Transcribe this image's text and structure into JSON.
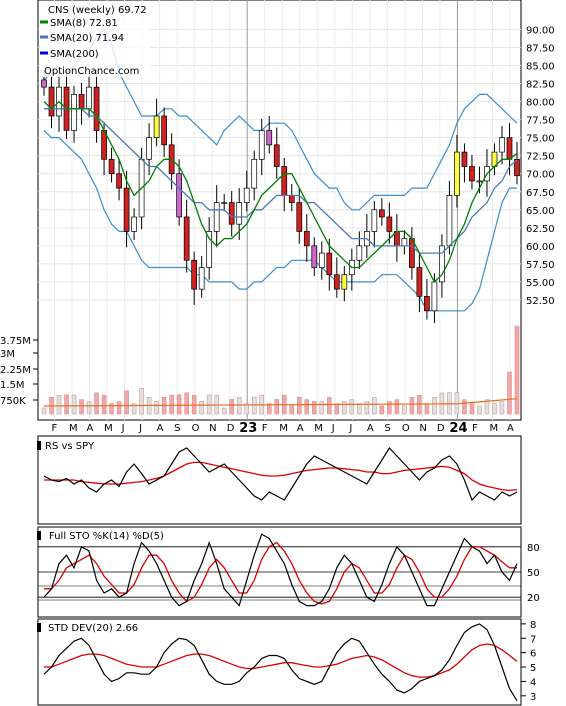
{
  "chart_data": [
    {
      "type": "candlestick",
      "panel": "price",
      "title": "CNS (weekly) 69.72",
      "watermark": "OptionChance.com",
      "legend": [
        {
          "label": "SMA(8) 72.81",
          "color": "#008000"
        },
        {
          "label": "SMA(20) 71.94",
          "color": "#4a7ab5"
        },
        {
          "label": "SMA(200)",
          "color": "#0000cc"
        }
      ],
      "ylim": [
        50,
        92
      ],
      "yticks": [
        "90.00",
        "87.50",
        "85.00",
        "82.50",
        "80.00",
        "77.50",
        "75.00",
        "72.50",
        "70.00",
        "67.50",
        "65.00",
        "62.50",
        "60.00",
        "57.50",
        "55.00",
        "52.50"
      ],
      "x_labels": [
        "F",
        "M",
        "A",
        "M",
        "J",
        "J",
        "A",
        "S",
        "O",
        "N",
        "D",
        "23",
        "F",
        "M",
        "A",
        "M",
        "J",
        "J",
        "A",
        "S",
        "O",
        "N",
        "D",
        "24",
        "F",
        "M",
        "A"
      ],
      "close": [
        82,
        78,
        82,
        76,
        81,
        79,
        82,
        76,
        72,
        70,
        68,
        62,
        64,
        72,
        75,
        78,
        74,
        70,
        64,
        58,
        54,
        57,
        62,
        66,
        66,
        63,
        66,
        68,
        72,
        76,
        74,
        71,
        67,
        66,
        62,
        60,
        57,
        59,
        56,
        54,
        56,
        58,
        60,
        62,
        65,
        64,
        62,
        60,
        61,
        57,
        53,
        51,
        55,
        60,
        67,
        73,
        71,
        69,
        69,
        71,
        73,
        75,
        72,
        69.72
      ],
      "sma8": [
        80,
        79,
        80,
        79,
        79,
        79,
        79,
        78,
        76,
        74,
        72,
        69,
        67,
        68,
        69,
        71,
        72,
        72,
        71,
        69,
        66,
        63,
        61,
        60,
        61,
        61,
        62,
        63,
        65,
        67,
        68,
        69,
        70,
        70,
        68,
        66,
        64,
        62,
        60,
        59,
        58,
        57,
        57,
        58,
        59,
        60,
        61,
        62,
        62,
        61,
        59,
        57,
        55,
        56,
        58,
        61,
        63,
        66,
        68,
        70,
        71,
        72,
        72,
        72.81
      ],
      "sma20": [
        79,
        79,
        79,
        79,
        79,
        79,
        78,
        78,
        77,
        76,
        75,
        74,
        73,
        72,
        71,
        71,
        70,
        69,
        68,
        67,
        66,
        66,
        65,
        65,
        65,
        64,
        64,
        64,
        65,
        65,
        66,
        67,
        67,
        67,
        67,
        66,
        66,
        65,
        64,
        63,
        62,
        61,
        61,
        61,
        60,
        60,
        60,
        60,
        60,
        60,
        59,
        59,
        59,
        59,
        60,
        61,
        62,
        64,
        65,
        66,
        68,
        69,
        71,
        71.94
      ],
      "bb_upper": [
        83,
        84,
        84,
        84,
        85,
        86,
        87,
        89,
        90,
        88,
        84,
        82,
        80,
        78,
        78,
        78,
        79,
        79,
        78,
        78,
        77,
        76,
        75,
        74,
        76,
        77,
        78,
        77,
        76,
        76,
        77,
        77,
        77,
        76,
        74,
        72,
        70,
        69,
        68,
        68,
        66,
        65,
        65,
        66,
        67,
        67,
        67,
        67,
        67,
        68,
        68,
        68,
        70,
        72,
        74,
        77,
        79,
        80,
        81,
        81,
        80,
        79,
        78,
        77
      ],
      "bb_lower": [
        76,
        75,
        75,
        74,
        73,
        72,
        70,
        68,
        65,
        63,
        62,
        62,
        60,
        58,
        57,
        57,
        57,
        57,
        57,
        57,
        56,
        56,
        55,
        55,
        55,
        55,
        54,
        54,
        55,
        55,
        56,
        57,
        57,
        58,
        58,
        58,
        58,
        57,
        56,
        55,
        55,
        55,
        55,
        55,
        55,
        56,
        56,
        56,
        55,
        54,
        53,
        51,
        51,
        51,
        51,
        51,
        51,
        52,
        54,
        58,
        62,
        66,
        68,
        68
      ],
      "volume_ylabels": [
        "3.75M",
        "3M",
        "2.25M",
        "1.5M",
        "750K"
      ]
    },
    {
      "type": "line",
      "panel": "rs",
      "title": "RS vs SPY",
      "series": [
        {
          "values": [
            0.55,
            0.5,
            0.48,
            0.52,
            0.45,
            0.5,
            0.4,
            0.35,
            0.45,
            0.5,
            0.42,
            0.6,
            0.7,
            0.58,
            0.45,
            0.5,
            0.55,
            0.7,
            0.85,
            0.9,
            0.8,
            0.7,
            0.6,
            0.65,
            0.7,
            0.6,
            0.5,
            0.4,
            0.3,
            0.25,
            0.35,
            0.3,
            0.25,
            0.4,
            0.55,
            0.7,
            0.8,
            0.75,
            0.7,
            0.65,
            0.6,
            0.55,
            0.5,
            0.45,
            0.6,
            0.75,
            0.9,
            0.8,
            0.7,
            0.6,
            0.5,
            0.6,
            0.65,
            0.75,
            0.8,
            0.7,
            0.5,
            0.25,
            0.35,
            0.3,
            0.25,
            0.35,
            0.3,
            0.35
          ]
        },
        {
          "values": [
            0.5,
            0.5,
            0.5,
            0.5,
            0.5,
            0.48,
            0.47,
            0.46,
            0.45,
            0.45,
            0.45,
            0.46,
            0.47,
            0.48,
            0.5,
            0.52,
            0.55,
            0.6,
            0.65,
            0.7,
            0.72,
            0.72,
            0.7,
            0.68,
            0.66,
            0.64,
            0.62,
            0.6,
            0.58,
            0.56,
            0.55,
            0.55,
            0.56,
            0.58,
            0.6,
            0.62,
            0.63,
            0.64,
            0.65,
            0.65,
            0.64,
            0.63,
            0.62,
            0.6,
            0.6,
            0.58,
            0.58,
            0.6,
            0.62,
            0.63,
            0.64,
            0.65,
            0.66,
            0.67,
            0.66,
            0.62,
            0.58,
            0.5,
            0.45,
            0.42,
            0.4,
            0.38,
            0.37,
            0.38
          ]
        }
      ]
    },
    {
      "type": "line",
      "panel": "stochastic",
      "title": "Full STO %K(14) %D(5)",
      "yticks": [
        "80",
        "50",
        "20"
      ],
      "ylim": [
        0,
        100
      ],
      "series": [
        {
          "values": [
            20,
            30,
            60,
            70,
            55,
            80,
            75,
            40,
            25,
            30,
            20,
            25,
            60,
            85,
            75,
            60,
            40,
            20,
            10,
            15,
            40,
            60,
            85,
            60,
            30,
            20,
            10,
            40,
            70,
            95,
            90,
            75,
            60,
            35,
            15,
            10,
            10,
            15,
            30,
            55,
            70,
            60,
            40,
            20,
            15,
            35,
            60,
            80,
            70,
            50,
            30,
            10,
            10,
            30,
            50,
            70,
            90,
            80,
            75,
            60,
            70,
            50,
            40,
            60
          ]
        },
        {
          "values": [
            30,
            30,
            40,
            55,
            60,
            65,
            70,
            60,
            45,
            35,
            25,
            25,
            35,
            55,
            70,
            70,
            60,
            40,
            25,
            15,
            20,
            35,
            55,
            65,
            55,
            40,
            25,
            25,
            40,
            65,
            80,
            85,
            75,
            60,
            40,
            25,
            15,
            12,
            15,
            30,
            50,
            60,
            55,
            40,
            25,
            25,
            35,
            55,
            70,
            65,
            50,
            30,
            20,
            20,
            30,
            45,
            65,
            80,
            80,
            75,
            70,
            62,
            55,
            55
          ]
        }
      ]
    },
    {
      "type": "line",
      "panel": "std_dev",
      "title": "STD DEV(20) 2.66",
      "yticks": [
        "8",
        "7",
        "6",
        "5",
        "4",
        "3"
      ],
      "ylim": [
        2.5,
        8.2
      ],
      "series": [
        {
          "values": [
            4.5,
            5,
            5.8,
            6.3,
            6.8,
            7,
            6.5,
            5.5,
            4.5,
            4,
            4.2,
            4.6,
            4.6,
            4.5,
            4.5,
            5,
            6,
            6.6,
            7,
            6.9,
            6.5,
            5.5,
            4.5,
            4,
            3.8,
            3.8,
            4,
            4.6,
            5,
            5.6,
            5.8,
            5.8,
            5.6,
            4.8,
            4.2,
            4,
            3.8,
            4,
            5,
            6,
            6.6,
            7,
            6.8,
            6,
            5.2,
            4.5,
            4,
            3.4,
            3.2,
            3.5,
            4,
            4.2,
            4.4,
            4.8,
            5.5,
            6.5,
            7.4,
            7.8,
            8,
            7.6,
            6.5,
            5,
            3.5,
            2.66
          ]
        },
        {
          "values": [
            5,
            5,
            5.2,
            5.4,
            5.6,
            5.8,
            5.9,
            5.9,
            5.8,
            5.6,
            5.4,
            5.2,
            5.1,
            5,
            5,
            5,
            5.2,
            5.4,
            5.6,
            5.8,
            5.9,
            5.9,
            5.8,
            5.6,
            5.4,
            5.2,
            5,
            4.9,
            4.9,
            5,
            5.1,
            5.2,
            5.3,
            5.3,
            5.2,
            5.1,
            5,
            5,
            5.1,
            5.2,
            5.4,
            5.6,
            5.7,
            5.8,
            5.7,
            5.5,
            5.2,
            4.9,
            4.6,
            4.4,
            4.3,
            4.3,
            4.4,
            4.6,
            4.8,
            5.2,
            5.7,
            6.2,
            6.5,
            6.6,
            6.5,
            6.2,
            5.8,
            5.4
          ]
        }
      ]
    }
  ]
}
